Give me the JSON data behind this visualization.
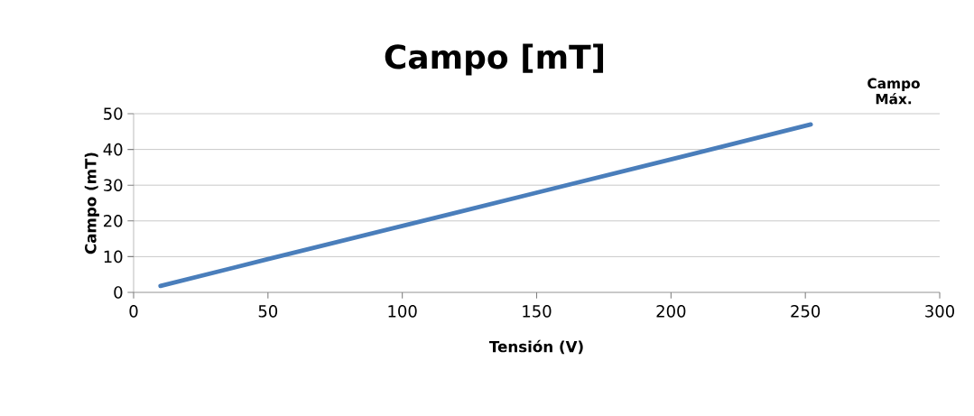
{
  "chart_data": {
    "type": "line",
    "title": "Campo [mT]",
    "xlabel": "Tensión (V)",
    "ylabel": "Campo (mT)",
    "annotations": [
      "Campo Máx."
    ],
    "x": [
      10,
      50,
      100,
      150,
      200,
      252
    ],
    "series": [
      {
        "color": "#4a7ebb",
        "values": [
          1.8,
          9.3,
          18.6,
          27.9,
          37.2,
          47.0
        ]
      }
    ],
    "xlim": [
      0,
      300
    ],
    "xticks": [
      0,
      50,
      100,
      150,
      200,
      250,
      300
    ],
    "ylim": [
      0,
      50
    ],
    "yticks": [
      0,
      10,
      20,
      30,
      40,
      50
    ],
    "grid": "y",
    "marker": "none",
    "line_style": "solid"
  }
}
